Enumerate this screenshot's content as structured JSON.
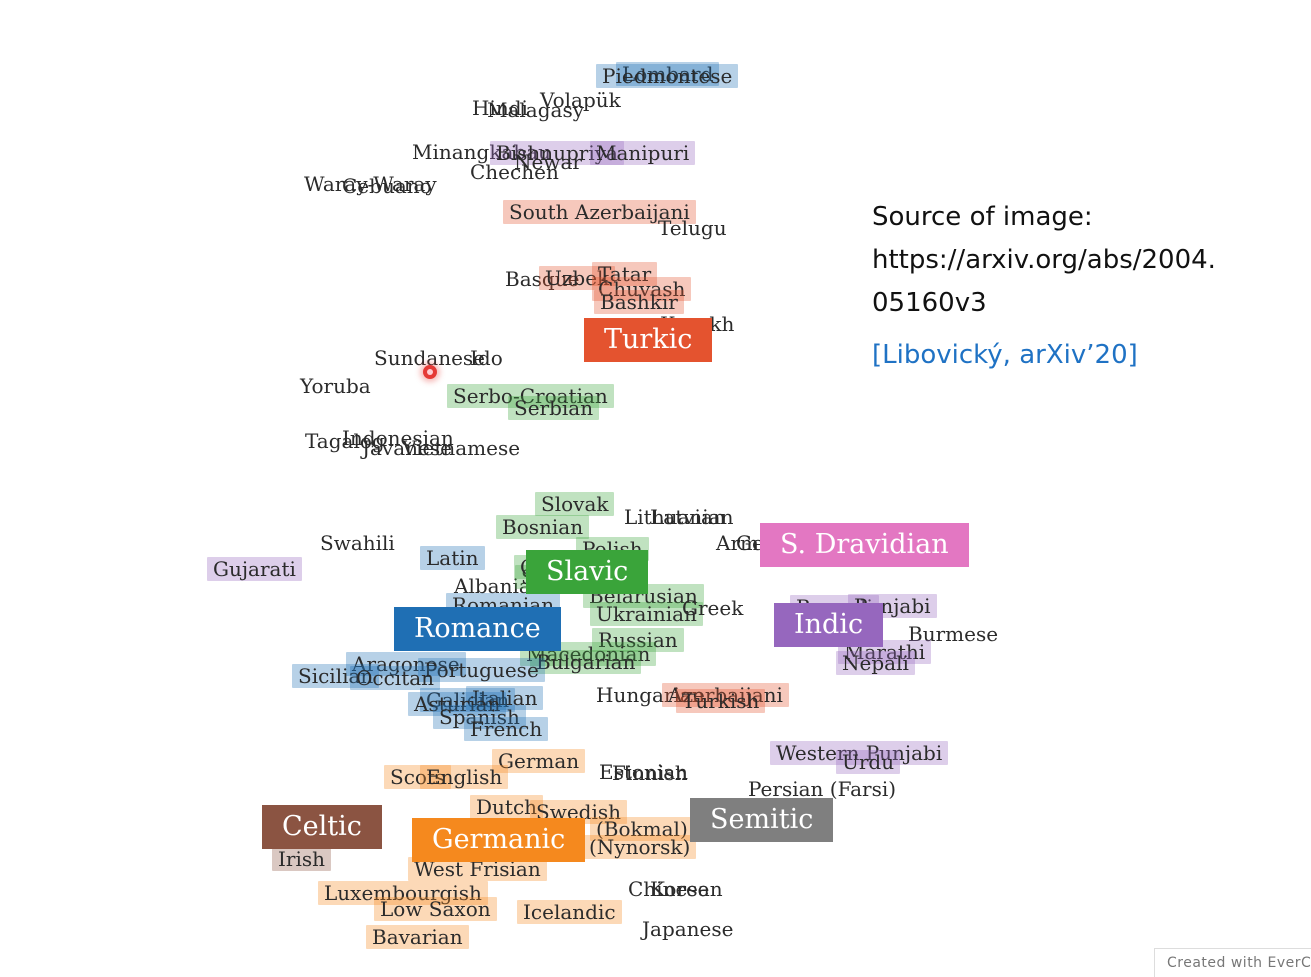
{
  "colors": {
    "turkic": "#e4532f",
    "slavic": "#3aa43a",
    "romance": "#1f6fb4",
    "germanic": "#f5891e",
    "celtic": "#8b5442",
    "semitic": "#7f7f7f",
    "indic": "#9667be",
    "dravidian": "#e377c2",
    "link": "#1f72c4"
  },
  "groups": [
    {
      "name": "Turkic",
      "family": "turkic"
    },
    {
      "name": "Slavic",
      "family": "slavic"
    },
    {
      "name": "Romance",
      "family": "romance"
    },
    {
      "name": "Germanic",
      "family": "germanic"
    },
    {
      "name": "Celtic",
      "family": "celtic"
    },
    {
      "name": "Semitic",
      "family": "semitic"
    },
    {
      "name": "Indic",
      "family": "indic"
    },
    {
      "name": "S. Dravidian",
      "family": "dravidian"
    }
  ],
  "languages": [
    {
      "text": "Lombard",
      "family": "romance"
    },
    {
      "text": "Piedmontese",
      "family": "romance"
    },
    {
      "text": "Hindi",
      "family": "none"
    },
    {
      "text": "Malagasy",
      "family": "none"
    },
    {
      "text": "Volapük",
      "family": "none"
    },
    {
      "text": "Minangkabau",
      "family": "none"
    },
    {
      "text": "Bishnupriya",
      "family": "indic"
    },
    {
      "text": "Newar",
      "family": "none"
    },
    {
      "text": "Manipuri",
      "family": "indic"
    },
    {
      "text": "Chechen",
      "family": "none"
    },
    {
      "text": "Waray-Waray",
      "family": "none"
    },
    {
      "text": "Cebuano",
      "family": "none"
    },
    {
      "text": "South Azerbaijani",
      "family": "turkic"
    },
    {
      "text": "Telugu",
      "family": "none"
    },
    {
      "text": "Basque",
      "family": "none"
    },
    {
      "text": "Uzbek",
      "family": "turkic"
    },
    {
      "text": "Tatar",
      "family": "turkic"
    },
    {
      "text": "Chuvash",
      "family": "turkic"
    },
    {
      "text": "Bashkir",
      "family": "turkic"
    },
    {
      "text": "Kazakh",
      "family": "none"
    },
    {
      "text": "Sundanese",
      "family": "none"
    },
    {
      "text": "Ido",
      "family": "none"
    },
    {
      "text": "Yoruba",
      "family": "none"
    },
    {
      "text": "Serbo-Croatian",
      "family": "slavic"
    },
    {
      "text": "Serbian",
      "family": "slavic"
    },
    {
      "text": "Tagalog",
      "family": "none"
    },
    {
      "text": "Indonesian",
      "family": "none"
    },
    {
      "text": "Javanese",
      "family": "none"
    },
    {
      "text": "Vietnamese",
      "family": "none"
    },
    {
      "text": "Slovak",
      "family": "slavic"
    },
    {
      "text": "Bosnian",
      "family": "slavic"
    },
    {
      "text": "Lithuanian",
      "family": "none"
    },
    {
      "text": "Latvian",
      "family": "none"
    },
    {
      "text": "Armenian",
      "family": "none"
    },
    {
      "text": "Georgian",
      "family": "none"
    },
    {
      "text": "Swahili",
      "family": "none"
    },
    {
      "text": "Gujarati",
      "family": "indic"
    },
    {
      "text": "Latin",
      "family": "romance"
    },
    {
      "text": "Polish",
      "family": "slavic"
    },
    {
      "text": "Albanian",
      "family": "none"
    },
    {
      "text": "Slovenian",
      "family": "slavic"
    },
    {
      "text": "Czech",
      "family": "slavic"
    },
    {
      "text": "Romanian",
      "family": "romance"
    },
    {
      "text": "Belarusian",
      "family": "slavic"
    },
    {
      "text": "Ukrainian",
      "family": "slavic"
    },
    {
      "text": "Greek",
      "family": "none"
    },
    {
      "text": "Bengali",
      "family": "indic"
    },
    {
      "text": "Punjabi",
      "family": "indic"
    },
    {
      "text": "Burmese",
      "family": "none"
    },
    {
      "text": "Russian",
      "family": "slavic"
    },
    {
      "text": "Macedonian",
      "family": "slavic"
    },
    {
      "text": "Bulgarian",
      "family": "slavic"
    },
    {
      "text": "Marathi",
      "family": "indic"
    },
    {
      "text": "Nepali",
      "family": "indic"
    },
    {
      "text": "Aragonese",
      "family": "romance"
    },
    {
      "text": "Portuguese",
      "family": "romance"
    },
    {
      "text": "Sicilian",
      "family": "romance"
    },
    {
      "text": "Occitan",
      "family": "romance"
    },
    {
      "text": "Galician",
      "family": "romance"
    },
    {
      "text": "Italian",
      "family": "romance"
    },
    {
      "text": "Asturian",
      "family": "romance"
    },
    {
      "text": "Spanish",
      "family": "romance"
    },
    {
      "text": "French",
      "family": "romance"
    },
    {
      "text": "Hungarian",
      "family": "none"
    },
    {
      "text": "Azerbaijani",
      "family": "turkic"
    },
    {
      "text": "Turkish",
      "family": "turkic"
    },
    {
      "text": "German",
      "family": "germanic"
    },
    {
      "text": "Estonian",
      "family": "none"
    },
    {
      "text": "Finnish",
      "family": "none"
    },
    {
      "text": "Western Punjabi",
      "family": "indic"
    },
    {
      "text": "Urdu",
      "family": "indic"
    },
    {
      "text": "Scots",
      "family": "germanic"
    },
    {
      "text": "English",
      "family": "germanic"
    },
    {
      "text": "Persian (Farsi)",
      "family": "none"
    },
    {
      "text": "Dutch",
      "family": "germanic"
    },
    {
      "text": "Swedish",
      "family": "germanic"
    },
    {
      "text": "(Bokmal)",
      "family": "germanic"
    },
    {
      "text": "(Nynorsk)",
      "family": "germanic"
    },
    {
      "text": "Irish",
      "family": "celtic"
    },
    {
      "text": "West Frisian",
      "family": "germanic"
    },
    {
      "text": "Chinese",
      "family": "none"
    },
    {
      "text": "Korean",
      "family": "none"
    },
    {
      "text": "Luxembourgish",
      "family": "germanic"
    },
    {
      "text": "Low Saxon",
      "family": "germanic"
    },
    {
      "text": "Icelandic",
      "family": "germanic"
    },
    {
      "text": "Japanese",
      "family": "none"
    },
    {
      "text": "Bavarian",
      "family": "germanic"
    }
  ],
  "source": {
    "line1": "Source of image:",
    "line2": "https://arxiv.org/abs/2004.",
    "line3": "05160v3",
    "citation": "[Libovický, arXiv’20]"
  },
  "footer": "Created with EverCam"
}
